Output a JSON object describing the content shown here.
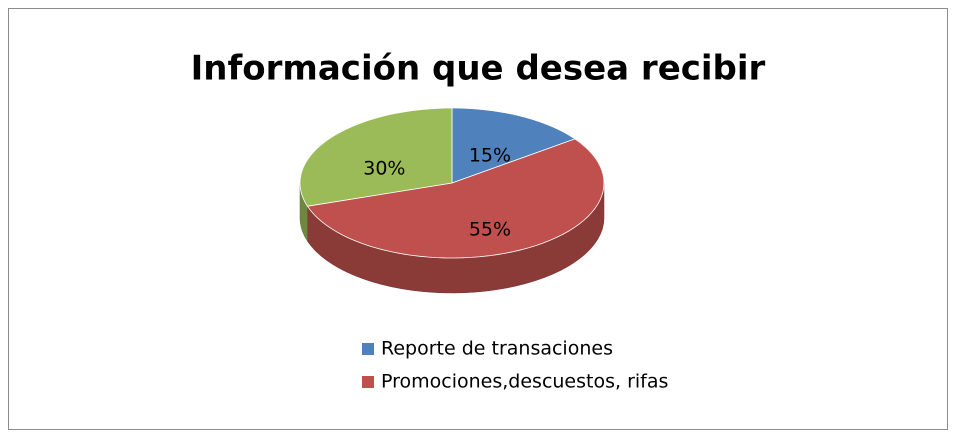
{
  "chart_data": {
    "type": "pie",
    "title": "Información que desea recibir",
    "categories": [
      "Reporte de transaciones",
      "Promociones,descuestos, rifas",
      null
    ],
    "values": [
      15,
      55,
      30
    ],
    "value_labels": [
      "15%",
      "55%",
      "30%"
    ],
    "colors": [
      "#4f81bd",
      "#c0504d",
      "#9bbb59"
    ],
    "legend": "bottom"
  }
}
